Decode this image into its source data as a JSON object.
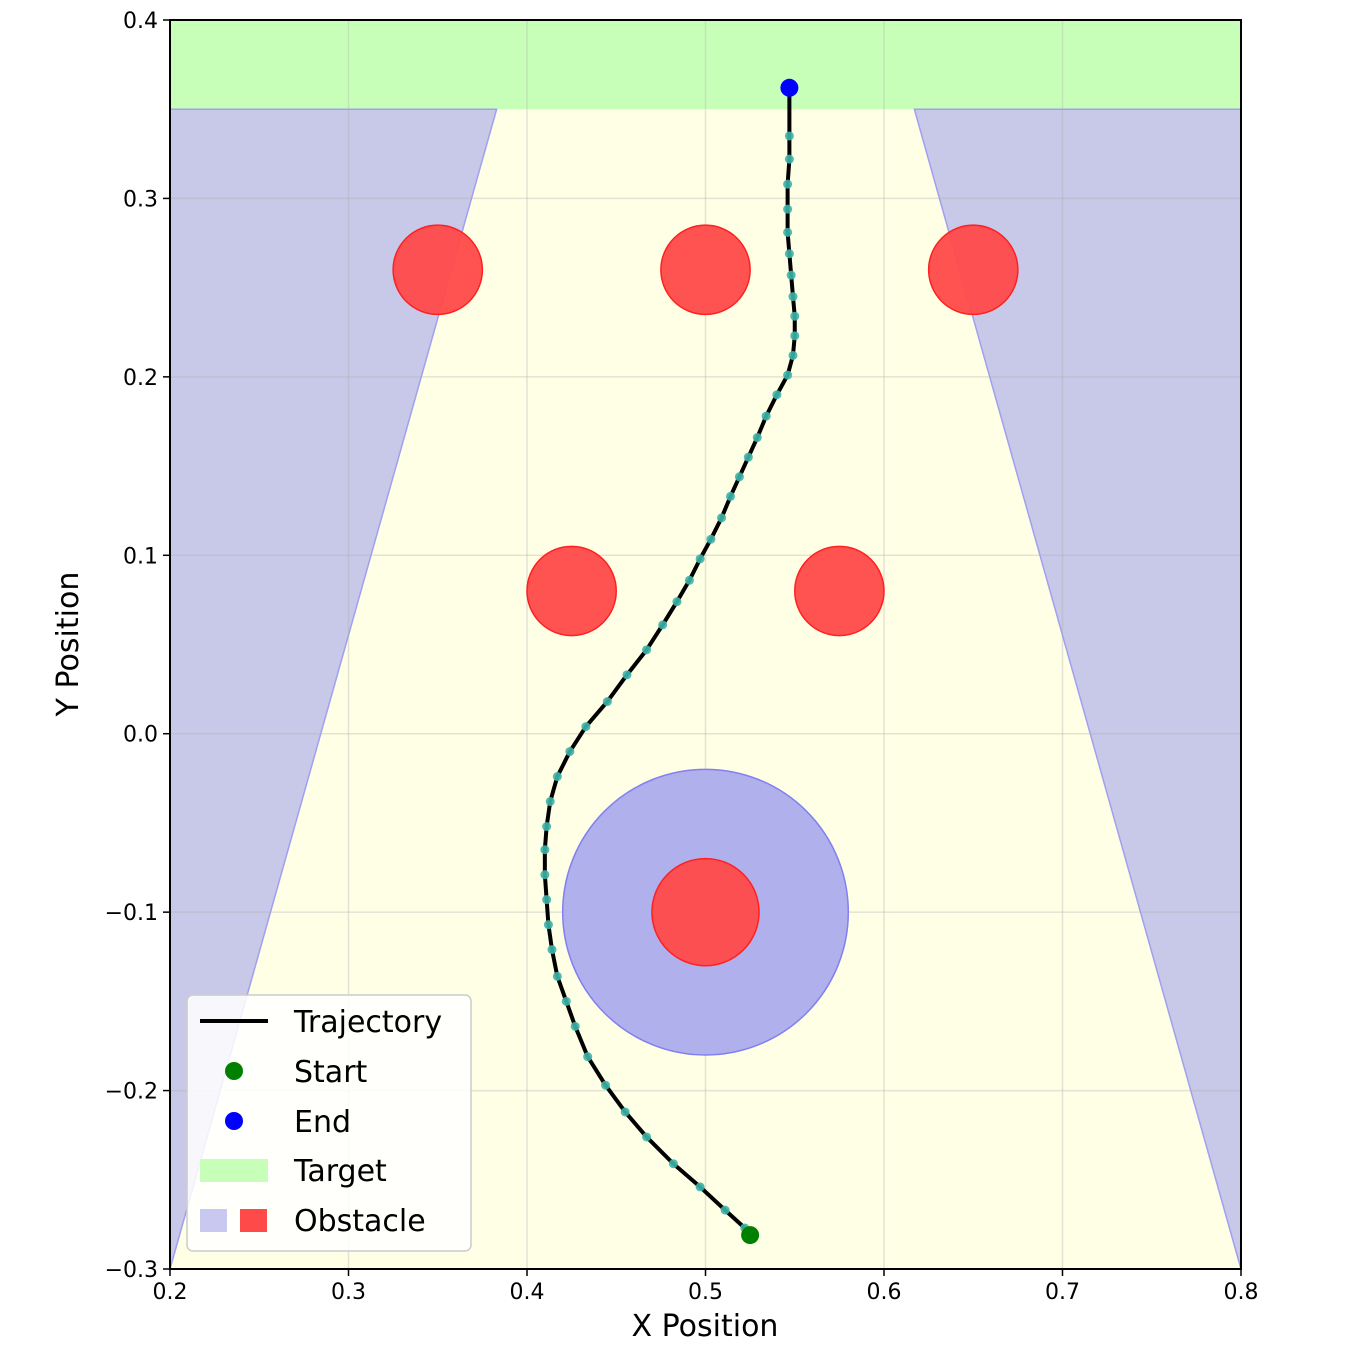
{
  "chart_data": {
    "type": "scatter",
    "title": "",
    "xlabel": "X Position",
    "ylabel": "Y Position",
    "xlim": [
      0.2,
      0.8
    ],
    "ylim": [
      -0.3,
      0.4
    ],
    "x_ticks": [
      0.2,
      0.3,
      0.4,
      0.5,
      0.6,
      0.7,
      0.8
    ],
    "y_ticks": [
      -0.3,
      -0.2,
      -0.1,
      0.0,
      0.1,
      0.2,
      0.3,
      0.4
    ],
    "x_tick_labels": [
      "0.2",
      "0.3",
      "0.4",
      "0.5",
      "0.6",
      "0.7",
      "0.8"
    ],
    "y_tick_labels": [
      "−0.3",
      "−0.2",
      "−0.1",
      "0.0",
      "0.1",
      "0.2",
      "0.3",
      "0.4"
    ],
    "grid": true,
    "legend_position": "lower-left",
    "colors": {
      "trajectory": "#000000",
      "waypoint": "#3cb4a8",
      "start": "#008000",
      "end": "#0000ff",
      "target": "#c8ffb8",
      "safe_region": "#ffffe6",
      "obstacle_zone": "#c8c8e8",
      "obstacle_zone_edge": "#a0a0f0",
      "obstacle_halo": "#b0b0ec",
      "obstacle": "#ff4a4a",
      "obstacle_overlap": "#e8323c"
    },
    "target_region": {
      "x": [
        0.2,
        0.8
      ],
      "y": [
        0.35,
        0.4
      ]
    },
    "corridor_boundary": {
      "left": [
        [
          0.2,
          -0.3
        ],
        [
          0.383,
          0.35
        ]
      ],
      "right": [
        [
          0.8,
          -0.3
        ],
        [
          0.617,
          0.35
        ]
      ]
    },
    "obstacles": [
      {
        "x": 0.35,
        "y": 0.26,
        "r": 0.025
      },
      {
        "x": 0.5,
        "y": 0.26,
        "r": 0.025
      },
      {
        "x": 0.65,
        "y": 0.26,
        "r": 0.025
      },
      {
        "x": 0.425,
        "y": 0.08,
        "r": 0.025
      },
      {
        "x": 0.575,
        "y": 0.08,
        "r": 0.025
      },
      {
        "x": 0.5,
        "y": -0.1,
        "r": 0.03
      }
    ],
    "obstacle_halo": {
      "x": 0.5,
      "y": -0.1,
      "r": 0.08
    },
    "start": {
      "x": 0.525,
      "y": -0.281
    },
    "end": {
      "x": 0.547,
      "y": 0.362
    },
    "trajectory": {
      "name": "Trajectory",
      "x": [
        0.525,
        0.522,
        0.511,
        0.497,
        0.482,
        0.467,
        0.455,
        0.444,
        0.434,
        0.427,
        0.422,
        0.417,
        0.414,
        0.412,
        0.411,
        0.41,
        0.41,
        0.411,
        0.413,
        0.417,
        0.424,
        0.433,
        0.445,
        0.456,
        0.467,
        0.476,
        0.484,
        0.491,
        0.497,
        0.503,
        0.509,
        0.514,
        0.519,
        0.524,
        0.529,
        0.534,
        0.54,
        0.546,
        0.549,
        0.55,
        0.55,
        0.549,
        0.548,
        0.547,
        0.546,
        0.546,
        0.546,
        0.547
      ],
      "y": [
        -0.281,
        -0.277,
        -0.267,
        -0.254,
        -0.241,
        -0.226,
        -0.212,
        -0.197,
        -0.181,
        -0.164,
        -0.15,
        -0.136,
        -0.121,
        -0.107,
        -0.093,
        -0.079,
        -0.065,
        -0.052,
        -0.038,
        -0.024,
        -0.01,
        0.004,
        0.018,
        0.033,
        0.047,
        0.061,
        0.074,
        0.086,
        0.098,
        0.109,
        0.121,
        0.133,
        0.144,
        0.155,
        0.166,
        0.178,
        0.19,
        0.201,
        0.212,
        0.223,
        0.234,
        0.245,
        0.257,
        0.269,
        0.281,
        0.294,
        0.308,
        0.322
      ],
      "waypoints_x": [
        0.522,
        0.511,
        0.497,
        0.482,
        0.467,
        0.455,
        0.444,
        0.434,
        0.427,
        0.422,
        0.417,
        0.414,
        0.412,
        0.411,
        0.41,
        0.41,
        0.411,
        0.413,
        0.417,
        0.424,
        0.433,
        0.445,
        0.456,
        0.467,
        0.476,
        0.484,
        0.491,
        0.497,
        0.503,
        0.509,
        0.514,
        0.519,
        0.524,
        0.529,
        0.534,
        0.54,
        0.546,
        0.549,
        0.55,
        0.55,
        0.549,
        0.548,
        0.547,
        0.546,
        0.546,
        0.546,
        0.547,
        0.547
      ],
      "waypoints_y": [
        -0.277,
        -0.267,
        -0.254,
        -0.241,
        -0.226,
        -0.212,
        -0.197,
        -0.181,
        -0.164,
        -0.15,
        -0.136,
        -0.121,
        -0.107,
        -0.093,
        -0.079,
        -0.065,
        -0.052,
        -0.038,
        -0.024,
        -0.01,
        0.004,
        0.018,
        0.033,
        0.047,
        0.061,
        0.074,
        0.086,
        0.098,
        0.109,
        0.121,
        0.133,
        0.144,
        0.155,
        0.166,
        0.178,
        0.19,
        0.201,
        0.212,
        0.223,
        0.234,
        0.245,
        0.257,
        0.269,
        0.281,
        0.294,
        0.308,
        0.322,
        0.335
      ]
    },
    "legend": {
      "trajectory": "Trajectory",
      "start": "Start",
      "end": "End",
      "target": "Target",
      "obstacle": "Obstacle"
    }
  }
}
